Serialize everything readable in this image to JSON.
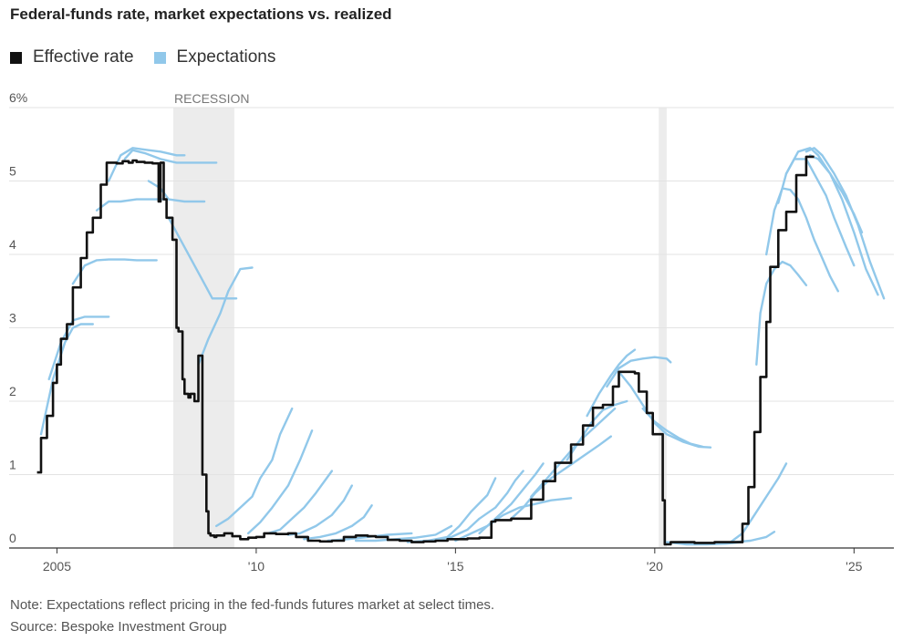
{
  "title": "Federal-funds rate, market expectations vs. realized",
  "colors": {
    "effective": "#111111",
    "expectations": "#91c8ea",
    "grid": "#e3e3e3",
    "recession": "#ececec"
  },
  "legend": {
    "effective": "Effective rate",
    "expectations": "Expectations"
  },
  "note": "Note: Expectations reflect pricing in the fed-funds futures market at select times.",
  "source": "Source: Bespoke Investment Group",
  "chart_data": {
    "type": "line",
    "title": "Federal-funds rate, market expectations vs. realized",
    "y_tick_labels": [
      "0",
      "1",
      "2",
      "3",
      "4",
      "5",
      "6%"
    ],
    "y_ticks": [
      0,
      1,
      2,
      3,
      4,
      5,
      6
    ],
    "x_tick_labels": [
      "2005",
      "'10",
      "'15",
      "'20",
      "'25"
    ],
    "x_ticks": [
      2005,
      2010,
      2015,
      2020,
      2025
    ],
    "xlim": [
      2003.8,
      2026.0
    ],
    "ylim": [
      0,
      6
    ],
    "grid": true,
    "legend_position": "top-left",
    "recessions": [
      {
        "label": "RECESSION",
        "start": 2007.92,
        "end": 2009.45
      },
      {
        "label": "",
        "start": 2020.1,
        "end": 2020.3
      }
    ],
    "effective": {
      "name": "Effective rate",
      "x": [
        2004.5,
        2004.6,
        2004.75,
        2004.9,
        2005.0,
        2005.1,
        2005.25,
        2005.4,
        2005.6,
        2005.75,
        2005.9,
        2006.1,
        2006.25,
        2006.4,
        2006.5,
        2006.65,
        2006.8,
        2006.9,
        2007.0,
        2007.2,
        2007.4,
        2007.55,
        2007.6,
        2007.68,
        2007.75,
        2007.8,
        2007.9,
        2008.0,
        2008.05,
        2008.15,
        2008.2,
        2008.3,
        2008.35,
        2008.45,
        2008.55,
        2008.65,
        2008.75,
        2008.8,
        2008.85,
        2008.95,
        2009.0,
        2009.2,
        2009.4,
        2009.6,
        2009.8,
        2010.0,
        2010.2,
        2010.5,
        2010.8,
        2011.0,
        2011.3,
        2011.6,
        2011.9,
        2012.2,
        2012.5,
        2012.8,
        2013.0,
        2013.3,
        2013.6,
        2013.9,
        2014.2,
        2014.5,
        2014.8,
        2015.0,
        2015.3,
        2015.6,
        2015.9,
        2016.0,
        2016.4,
        2016.9,
        2017.0,
        2017.2,
        2017.5,
        2017.9,
        2018.2,
        2018.45,
        2018.7,
        2018.95,
        2019.1,
        2019.3,
        2019.5,
        2019.6,
        2019.8,
        2019.95,
        2020.1,
        2020.2,
        2020.25,
        2020.4,
        2021.0,
        2021.5,
        2022.0,
        2022.2,
        2022.35,
        2022.5,
        2022.65,
        2022.8,
        2022.9,
        2023.1,
        2023.3,
        2023.55,
        2023.8,
        2024.0
      ],
      "y": [
        1.03,
        1.5,
        1.8,
        2.25,
        2.5,
        2.85,
        3.05,
        3.55,
        3.95,
        4.3,
        4.5,
        4.95,
        5.25,
        5.25,
        5.24,
        5.27,
        5.25,
        5.28,
        5.26,
        5.25,
        5.24,
        4.72,
        5.25,
        4.75,
        4.5,
        4.5,
        4.2,
        3.0,
        2.95,
        2.3,
        2.1,
        2.05,
        2.1,
        2.0,
        2.62,
        1.0,
        0.5,
        0.2,
        0.17,
        0.15,
        0.17,
        0.2,
        0.16,
        0.12,
        0.14,
        0.15,
        0.2,
        0.19,
        0.2,
        0.15,
        0.1,
        0.09,
        0.1,
        0.15,
        0.17,
        0.16,
        0.15,
        0.11,
        0.1,
        0.08,
        0.09,
        0.1,
        0.12,
        0.12,
        0.13,
        0.14,
        0.36,
        0.38,
        0.4,
        0.66,
        0.66,
        0.91,
        1.16,
        1.41,
        1.67,
        1.91,
        1.95,
        2.2,
        2.4,
        2.4,
        2.38,
        2.13,
        1.84,
        1.55,
        1.55,
        0.65,
        0.05,
        0.08,
        0.07,
        0.08,
        0.08,
        0.33,
        0.83,
        1.58,
        2.33,
        3.08,
        3.83,
        4.33,
        4.58,
        5.08,
        5.33,
        5.33
      ]
    },
    "expectations": {
      "name": "Expectations",
      "series": [
        {
          "x": [
            2004.6,
            2004.9,
            2005.2,
            2005.4,
            2005.6,
            2005.9
          ],
          "y": [
            1.55,
            2.3,
            2.8,
            3.0,
            3.05,
            3.05
          ]
        },
        {
          "x": [
            2004.8,
            2005.1,
            2005.4,
            2005.7,
            2006.0,
            2006.3
          ],
          "y": [
            2.3,
            2.8,
            3.1,
            3.15,
            3.15,
            3.15
          ]
        },
        {
          "x": [
            2005.4,
            2005.7,
            2006.0,
            2006.3,
            2006.7,
            2007.0,
            2007.3,
            2007.5
          ],
          "y": [
            3.6,
            3.85,
            3.92,
            3.93,
            3.93,
            3.92,
            3.92,
            3.92
          ]
        },
        {
          "x": [
            2006.0,
            2006.3,
            2006.6,
            2007.0,
            2007.4,
            2007.7
          ],
          "y": [
            4.6,
            4.72,
            4.72,
            4.75,
            4.75,
            4.75
          ]
        },
        {
          "x": [
            2006.3,
            2006.6,
            2006.9,
            2007.3,
            2007.6,
            2008.0,
            2008.2
          ],
          "y": [
            5.0,
            5.35,
            5.45,
            5.42,
            5.4,
            5.35,
            5.35
          ]
        },
        {
          "x": [
            2006.7,
            2006.9,
            2007.2,
            2007.6,
            2008.0,
            2008.5,
            2009.0
          ],
          "y": [
            5.3,
            5.42,
            5.38,
            5.3,
            5.25,
            5.25,
            5.25
          ]
        },
        {
          "x": [
            2007.3,
            2007.6,
            2007.8,
            2008.2,
            2008.7
          ],
          "y": [
            5.0,
            4.9,
            4.75,
            4.72,
            4.72
          ]
        },
        {
          "x": [
            2007.8,
            2008.1,
            2008.4,
            2008.7,
            2008.9,
            2009.5
          ],
          "y": [
            4.5,
            4.2,
            3.9,
            3.6,
            3.4,
            3.4
          ]
        },
        {
          "x": [
            2008.55,
            2008.8,
            2009.1,
            2009.3,
            2009.6,
            2009.9
          ],
          "y": [
            2.5,
            2.85,
            3.2,
            3.5,
            3.8,
            3.82
          ]
        },
        {
          "x": [
            2009.0,
            2009.3,
            2009.6,
            2009.9,
            2010.1,
            2010.4,
            2010.6,
            2010.9
          ],
          "y": [
            0.3,
            0.4,
            0.55,
            0.7,
            0.95,
            1.2,
            1.55,
            1.9
          ]
        },
        {
          "x": [
            2009.8,
            2010.1,
            2010.4,
            2010.8,
            2011.1,
            2011.4
          ],
          "y": [
            0.2,
            0.35,
            0.55,
            0.85,
            1.2,
            1.6
          ]
        },
        {
          "x": [
            2010.3,
            2010.6,
            2010.9,
            2011.2,
            2011.5,
            2011.9
          ],
          "y": [
            0.2,
            0.25,
            0.4,
            0.55,
            0.75,
            1.05
          ]
        },
        {
          "x": [
            2010.8,
            2011.1,
            2011.5,
            2011.9,
            2012.2,
            2012.4
          ],
          "y": [
            0.18,
            0.2,
            0.3,
            0.45,
            0.65,
            0.85
          ]
        },
        {
          "x": [
            2011.2,
            2011.6,
            2012.0,
            2012.4,
            2012.7,
            2012.9
          ],
          "y": [
            0.12,
            0.15,
            0.2,
            0.3,
            0.42,
            0.58
          ]
        },
        {
          "x": [
            2011.8,
            2012.3,
            2012.8,
            2013.3,
            2013.9
          ],
          "y": [
            0.1,
            0.12,
            0.15,
            0.18,
            0.2
          ]
        },
        {
          "x": [
            2012.5,
            2013.0,
            2013.5,
            2014.0,
            2014.5,
            2014.9
          ],
          "y": [
            0.1,
            0.1,
            0.12,
            0.14,
            0.18,
            0.3
          ]
        },
        {
          "x": [
            2013.8,
            2014.3,
            2014.8,
            2015.1,
            2015.4,
            2015.8,
            2016.0
          ],
          "y": [
            0.08,
            0.1,
            0.15,
            0.3,
            0.5,
            0.72,
            0.95
          ]
        },
        {
          "x": [
            2014.5,
            2014.9,
            2015.3,
            2015.6,
            2016.0,
            2016.3,
            2016.5,
            2016.7
          ],
          "y": [
            0.1,
            0.15,
            0.25,
            0.4,
            0.55,
            0.75,
            0.92,
            1.05
          ]
        },
        {
          "x": [
            2015.0,
            2015.4,
            2015.8,
            2016.2,
            2016.6,
            2017.0,
            2017.4,
            2017.9
          ],
          "y": [
            0.1,
            0.2,
            0.3,
            0.45,
            0.55,
            0.6,
            0.65,
            0.68
          ]
        },
        {
          "x": [
            2015.6,
            2016.0,
            2016.4,
            2016.7,
            2017.0,
            2017.2
          ],
          "y": [
            0.2,
            0.4,
            0.6,
            0.8,
            1.0,
            1.15
          ]
        },
        {
          "x": [
            2016.4,
            2016.7,
            2017.0,
            2017.4,
            2017.8,
            2018.2,
            2018.6,
            2018.9
          ],
          "y": [
            0.4,
            0.55,
            0.75,
            0.95,
            1.1,
            1.25,
            1.4,
            1.52
          ]
        },
        {
          "x": [
            2016.9,
            2017.3,
            2017.7,
            2018.1,
            2018.5,
            2018.8,
            2019.0
          ],
          "y": [
            0.7,
            0.95,
            1.2,
            1.45,
            1.65,
            1.8,
            1.9
          ]
        },
        {
          "x": [
            2017.8,
            2018.1,
            2018.4,
            2018.7,
            2019.0,
            2019.3
          ],
          "y": [
            1.2,
            1.45,
            1.7,
            1.88,
            1.95,
            2.0
          ]
        },
        {
          "x": [
            2018.3,
            2018.6,
            2018.9,
            2019.1,
            2019.3,
            2019.5
          ],
          "y": [
            1.8,
            2.1,
            2.35,
            2.5,
            2.62,
            2.7
          ]
        },
        {
          "x": [
            2018.8,
            2019.1,
            2019.4,
            2019.7,
            2020.0,
            2020.3,
            2020.4
          ],
          "y": [
            2.2,
            2.45,
            2.55,
            2.58,
            2.6,
            2.58,
            2.53
          ]
        },
        {
          "x": [
            2019.1,
            2019.4,
            2019.7,
            2020.0,
            2020.3,
            2020.7,
            2021.1,
            2021.4
          ],
          "y": [
            2.4,
            2.2,
            1.95,
            1.7,
            1.55,
            1.45,
            1.38,
            1.37
          ]
        },
        {
          "x": [
            2019.7,
            2020.0,
            2020.3,
            2020.6,
            2020.9,
            2021.2
          ],
          "y": [
            1.9,
            1.72,
            1.6,
            1.5,
            1.42,
            1.38
          ]
        },
        {
          "x": [
            2020.3,
            2020.8,
            2021.3,
            2021.8,
            2022.2
          ],
          "y": [
            0.08,
            0.05,
            0.05,
            0.06,
            0.08
          ]
        },
        {
          "x": [
            2021.0,
            2021.5,
            2022.0,
            2022.4,
            2022.8,
            2023.0
          ],
          "y": [
            0.05,
            0.06,
            0.08,
            0.1,
            0.15,
            0.22
          ]
        },
        {
          "x": [
            2021.9,
            2022.2,
            2022.5,
            2022.8,
            2023.1,
            2023.3
          ],
          "y": [
            0.08,
            0.2,
            0.45,
            0.7,
            0.95,
            1.15
          ]
        },
        {
          "x": [
            2022.55,
            2022.65,
            2022.8,
            2023.0,
            2023.2,
            2023.4,
            2023.6,
            2023.8
          ],
          "y": [
            2.5,
            3.2,
            3.6,
            3.8,
            3.9,
            3.85,
            3.72,
            3.58
          ]
        },
        {
          "x": [
            2022.8,
            2023.0,
            2023.2,
            2023.4,
            2023.6,
            2023.8,
            2024.0,
            2024.2,
            2024.4,
            2024.6
          ],
          "y": [
            4.0,
            4.6,
            4.9,
            4.88,
            4.75,
            4.5,
            4.2,
            3.95,
            3.7,
            3.5
          ]
        },
        {
          "x": [
            2023.1,
            2023.3,
            2023.5,
            2023.8,
            2024.0,
            2024.3,
            2024.5,
            2024.8,
            2025.0
          ],
          "y": [
            4.7,
            5.1,
            5.3,
            5.3,
            5.1,
            4.8,
            4.5,
            4.1,
            3.85
          ]
        },
        {
          "x": [
            2023.3,
            2023.6,
            2023.9,
            2024.1,
            2024.4,
            2024.7,
            2025.0,
            2025.3,
            2025.6
          ],
          "y": [
            5.1,
            5.4,
            5.45,
            5.35,
            5.1,
            4.75,
            4.3,
            3.8,
            3.45
          ]
        },
        {
          "x": [
            2023.8,
            2024.0,
            2024.2,
            2024.5,
            2024.8,
            2025.1,
            2025.4,
            2025.75
          ],
          "y": [
            5.4,
            5.45,
            5.35,
            5.1,
            4.8,
            4.4,
            3.9,
            3.4
          ]
        },
        {
          "x": [
            2023.9,
            2024.1,
            2024.4,
            2024.7,
            2025.0,
            2025.2
          ],
          "y": [
            5.35,
            5.3,
            5.1,
            4.85,
            4.55,
            4.3
          ]
        }
      ]
    }
  }
}
